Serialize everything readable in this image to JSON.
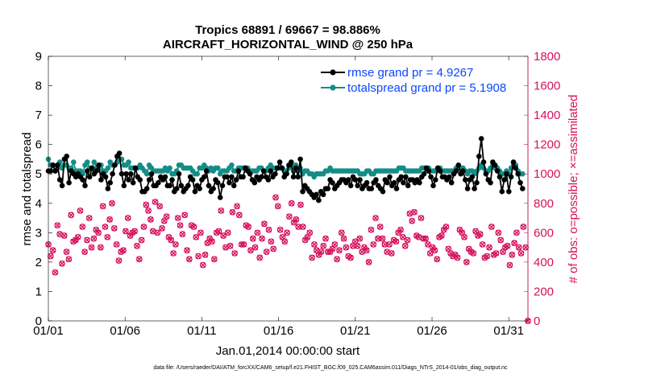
{
  "chart_data": {
    "type": "line",
    "title": "Tropics 68891 / 69667 = 98.886%",
    "subtitle": "AIRCRAFT_HORIZONTAL_WIND @ 250 hPa",
    "xlabel": "Jan.01,2014 00:00:00 start",
    "ylabel": "rmse and totalspread",
    "ylabel_right": "# of obs: o=possible; ×=assimilated",
    "footnote": "data file: /Users/raeder/DAI/ATM_forcXX/CAM6_setup/f.e21.FHIST_BGC.f09_025.CAM6assim.011/Diags_NTrS_2014-01/obs_diag_output.nc",
    "xlim": [
      0,
      31.25
    ],
    "ylim": [
      0,
      9
    ],
    "ylim_right": [
      0,
      1800
    ],
    "x_ticks": [
      0,
      5,
      10,
      15,
      20,
      25,
      30
    ],
    "x_tick_labels": [
      "01/01",
      "01/06",
      "01/11",
      "01/16",
      "01/21",
      "01/26",
      "01/31"
    ],
    "y_ticks": [
      "0",
      "1",
      "2",
      "3",
      "4",
      "5",
      "6",
      "7",
      "8",
      "9"
    ],
    "y_ticks_right": [
      "0",
      "200",
      "400",
      "600",
      "800",
      "1000",
      "1200",
      "1400",
      "1600",
      "1800"
    ],
    "colors": {
      "rmse": "#000000",
      "spread": "#138d86",
      "obs": "#d6105c",
      "legend_text": "#0a47ff"
    },
    "series": [
      {
        "name": "rmse grand pr = 4.9267",
        "color": "#000000",
        "values": [
          5.1,
          5.1,
          5.3,
          5.1,
          5.3,
          4.8,
          4.6,
          5.5,
          5.6,
          4.7,
          5.1,
          5.0,
          4.9,
          5.0,
          4.9,
          4.8,
          4.6,
          5.1,
          4.9,
          5.2,
          5.0,
          5.1,
          5.3,
          4.8,
          5.0,
          4.9,
          4.5,
          4.7,
          5.0,
          5.3,
          5.6,
          5.7,
          5.0,
          4.6,
          5.0,
          4.8,
          5.0,
          4.7,
          5.2,
          4.9,
          4.8,
          4.4,
          4.4,
          4.5,
          4.8,
          5.0,
          4.6,
          4.6,
          4.7,
          4.9,
          4.8,
          4.9,
          4.6,
          4.6,
          4.8,
          4.4,
          4.5,
          5.0,
          4.6,
          4.4,
          4.5,
          4.6,
          4.9,
          4.8,
          4.4,
          4.6,
          4.5,
          4.8,
          4.9,
          5.1,
          4.6,
          4.4,
          4.5,
          4.8,
          4.7,
          4.2,
          4.6,
          4.9,
          4.9,
          4.7,
          4.9,
          4.6,
          4.8,
          5.1,
          4.9,
          4.9,
          5.2,
          5.1,
          5.0,
          4.8,
          4.7,
          4.9,
          4.8,
          4.9,
          5.1,
          4.9,
          4.8,
          5.1,
          4.9,
          5.0,
          5.2,
          5.4,
          5.2,
          4.9,
          5.0,
          5.3,
          5.4,
          4.9,
          5.2,
          4.9,
          5.5,
          4.4,
          4.6,
          4.5,
          4.4,
          4.3,
          4.2,
          4.3,
          4.1,
          4.4,
          4.3,
          4.5,
          4.5,
          4.8,
          4.7,
          4.5,
          4.6,
          4.7,
          4.8,
          4.8,
          4.7,
          4.8,
          4.6,
          4.9,
          4.8,
          4.6,
          4.8,
          4.5,
          4.6,
          4.7,
          4.5,
          4.5,
          4.7,
          4.8,
          4.6,
          4.5,
          4.4,
          4.8,
          4.7,
          4.9,
          4.6,
          4.7,
          4.5,
          4.8,
          4.9,
          4.7,
          4.9,
          4.6,
          4.8,
          4.8,
          4.7,
          4.8,
          4.7,
          4.9,
          5.0,
          5.2,
          5.1,
          4.9,
          4.6,
          4.8,
          5.2,
          5.1,
          4.9,
          4.9,
          4.8,
          4.9,
          4.7,
          5.0,
          5.1,
          5.3,
          5.0,
          5.1,
          4.8,
          4.5,
          4.8,
          4.9,
          4.5,
          4.7,
          5.6,
          6.2,
          5.4,
          5.0,
          4.8,
          4.7,
          5.4,
          5.3,
          5.1,
          4.9,
          4.4,
          4.8,
          5.0,
          4.4,
          4.9,
          5.4,
          5.2,
          5.0,
          4.7,
          4.5
        ]
      },
      {
        "name": "totalspread grand pr = 5.1908",
        "color": "#138d86",
        "values": [
          5.5,
          5.3,
          5.3,
          5.1,
          5.2,
          5.4,
          5.2,
          5.3,
          5.3,
          5.2,
          5.2,
          5.4,
          5.1,
          5.1,
          5.1,
          5.0,
          5.3,
          5.4,
          5.2,
          5.2,
          5.4,
          5.2,
          5.2,
          5.3,
          5.1,
          5.1,
          5.2,
          5.4,
          5.3,
          5.3,
          5.4,
          5.5,
          5.5,
          5.3,
          5.3,
          5.4,
          5.2,
          5.2,
          5.2,
          5.2,
          5.3,
          5.2,
          5.1,
          5.0,
          5.3,
          5.2,
          5.1,
          5.1,
          5.1,
          5.1,
          5.1,
          5.2,
          5.1,
          5.2,
          5.0,
          5.0,
          5.1,
          5.3,
          5.3,
          5.2,
          5.2,
          5.2,
          5.2,
          5.1,
          5.0,
          5.0,
          5.2,
          5.2,
          5.3,
          5.2,
          5.1,
          5.2,
          5.1,
          5.2,
          5.2,
          5.0,
          5.1,
          5.1,
          5.1,
          5.2,
          5.3,
          5.1,
          5.1,
          5.2,
          5.2,
          5.2,
          5.2,
          5.2,
          5.1,
          5.1,
          5.1,
          5.1,
          5.2,
          5.2,
          5.1,
          5.1,
          5.2,
          5.3,
          5.2,
          5.2,
          5.2,
          5.2,
          5.2,
          5.1,
          5.1,
          5.2,
          5.3,
          5.1,
          5.3,
          5.1,
          5.2,
          5.0,
          5.1,
          5.1,
          5.0,
          5.0,
          4.9,
          5.0,
          5.0,
          5.0,
          5.0,
          5.1,
          5.1,
          5.2,
          5.1,
          5.1,
          5.1,
          5.1,
          5.1,
          5.1,
          5.1,
          5.1,
          5.1,
          5.1,
          5.1,
          5.1,
          5.0,
          5.0,
          5.0,
          5.1,
          5.1,
          5.0,
          5.0,
          5.1,
          5.1,
          5.1,
          5.1,
          5.1,
          5.1,
          5.1,
          5.1,
          5.1,
          5.1,
          5.2,
          5.2,
          5.2,
          5.1,
          5.1,
          5.1,
          5.1,
          5.1,
          5.1,
          5.1,
          5.2,
          5.2,
          5.2,
          5.2,
          5.1,
          5.1,
          5.1,
          5.2,
          5.2,
          5.1,
          5.1,
          5.1,
          5.1,
          5.1,
          5.1,
          5.2,
          5.2,
          5.2,
          5.2,
          5.1,
          5.0,
          5.1,
          5.1,
          5.0,
          5.1,
          5.2,
          5.3,
          5.2,
          5.1,
          5.1,
          5.2,
          5.3,
          5.2,
          5.2,
          5.1,
          5.0,
          5.0,
          5.1,
          5.0,
          5.2,
          5.3,
          5.3,
          5.1,
          5.0,
          5.0
        ]
      }
    ],
    "obs_series": {
      "name": "# of obs",
      "axis": "right",
      "color": "#d6105c",
      "values": [
        520,
        440,
        480,
        330,
        650,
        590,
        390,
        580,
        470,
        420,
        720,
        540,
        550,
        570,
        750,
        640,
        470,
        550,
        700,
        500,
        560,
        620,
        600,
        500,
        780,
        640,
        570,
        690,
        800,
        630,
        520,
        410,
        470,
        480,
        610,
        700,
        580,
        600,
        610,
        510,
        420,
        550,
        640,
        790,
        750,
        690,
        610,
        810,
        600,
        780,
        630,
        680,
        710,
        570,
        550,
        460,
        520,
        700,
        650,
        590,
        720,
        480,
        420,
        650,
        640,
        570,
        440,
        600,
        380,
        450,
        530,
        560,
        540,
        420,
        600,
        610,
        750,
        580,
        500,
        600,
        510,
        740,
        460,
        780,
        720,
        520,
        520,
        650,
        640,
        480,
        560,
        500,
        600,
        430,
        560,
        660,
        470,
        620,
        540,
        490,
        840,
        780,
        620,
        570,
        540,
        600,
        710,
        800,
        670,
        690,
        640,
        790,
        640,
        550,
        570,
        600,
        430,
        520,
        480,
        450,
        470,
        510,
        560,
        470,
        470,
        490,
        520,
        420,
        480,
        600,
        560,
        500,
        440,
        430,
        510,
        540,
        510,
        560,
        470,
        500,
        480,
        400,
        620,
        520,
        700,
        560,
        640,
        560,
        520,
        470,
        520,
        460,
        550,
        540,
        600,
        620,
        570,
        510,
        550,
        730,
        680,
        740,
        580,
        570,
        700,
        560,
        560,
        520,
        460,
        500,
        480,
        420,
        570,
        580,
        620,
        640,
        490,
        460,
        440,
        450,
        430,
        620,
        600,
        570,
        400,
        490,
        470,
        460,
        610,
        580,
        590,
        520,
        430,
        440,
        500,
        640,
        450,
        460,
        600,
        550,
        470,
        500,
        510,
        380,
        450,
        530,
        600,
        500,
        460,
        640,
        500,
        0
      ]
    },
    "legend": [
      "rmse grand pr = 4.9267",
      "totalspread grand pr = 5.1908"
    ]
  }
}
